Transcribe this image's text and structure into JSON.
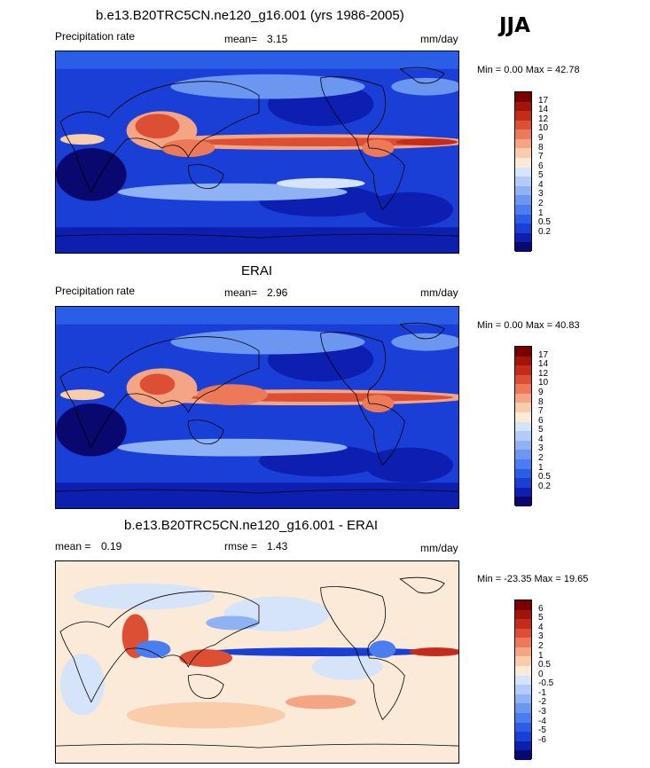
{
  "season": "JJA",
  "colors": {
    "full": [
      "#08086e",
      "#0d1fb0",
      "#1a3fd6",
      "#2a5ee6",
      "#4a7df0",
      "#6b97f0",
      "#8fb2f4",
      "#b3ccf7",
      "#d6e4fa",
      "#fbead8",
      "#f9ccaa",
      "#f4a684",
      "#ec7a58",
      "#dd4f34",
      "#c42b1a",
      "#a11508",
      "#7a0000"
    ],
    "diff": [
      "#08086e",
      "#0d1fb0",
      "#1a3fd6",
      "#2a5ee6",
      "#4a7df0",
      "#6b97f0",
      "#8fb2f4",
      "#b3ccf7",
      "#d6e4fa",
      "#fbead8",
      "#f9ccaa",
      "#f4a684",
      "#ec7a58",
      "#dd4f34",
      "#c42b1a",
      "#a11508",
      "#7a0000"
    ]
  },
  "panels": [
    {
      "title": "b.e13.B20TRC5CN.ne120_g16.001 (yrs 1986-2005)",
      "left_label": "Precipitation rate",
      "mean_label": "mean=",
      "mean_value": "3.15",
      "units": "mm/day",
      "minmax": "Min =   0.00 Max =  42.78",
      "ticks": [
        "17",
        "14",
        "12",
        "10",
        "9",
        "8",
        "7",
        "6",
        "5",
        "4",
        "3",
        "2",
        "1",
        "0.5",
        "0.2"
      ]
    },
    {
      "title": "ERAI",
      "left_label": "Precipitation rate",
      "mean_label": "mean=",
      "mean_value": "2.96",
      "units": "mm/day",
      "minmax": "Min =   0.00 Max =  40.83",
      "ticks": [
        "17",
        "14",
        "12",
        "10",
        "9",
        "8",
        "7",
        "6",
        "5",
        "4",
        "3",
        "2",
        "1",
        "0.5",
        "0.2"
      ]
    },
    {
      "title": "b.e13.B20TRC5CN.ne120_g16.001 - ERAI",
      "left_label": "mean =",
      "left_value": "0.19",
      "mean_label": "rmse =",
      "mean_value": "1.43",
      "units": "mm/day",
      "minmax": "Min = -23.35 Max =  19.65",
      "ticks": [
        "6",
        "5",
        "4",
        "3",
        "2",
        "1",
        "0.5",
        "0",
        "-0.5",
        "-1",
        "-2",
        "-3",
        "-4",
        "-5",
        "-6"
      ]
    }
  ],
  "chart_data": [
    {
      "type": "heatmap",
      "title": "b.e13.B20TRC5CN.ne120_g16.001 (yrs 1986-2005)",
      "variable": "Precipitation rate",
      "units": "mm/day",
      "mean": 3.15,
      "min": 0.0,
      "max": 42.78,
      "levels": [
        0.2,
        0.5,
        1,
        2,
        3,
        4,
        5,
        6,
        7,
        8,
        9,
        10,
        12,
        14,
        17
      ]
    },
    {
      "type": "heatmap",
      "title": "ERAI",
      "variable": "Precipitation rate",
      "units": "mm/day",
      "mean": 2.96,
      "min": 0.0,
      "max": 40.83,
      "levels": [
        0.2,
        0.5,
        1,
        2,
        3,
        4,
        5,
        6,
        7,
        8,
        9,
        10,
        12,
        14,
        17
      ]
    },
    {
      "type": "heatmap",
      "title": "b.e13.B20TRC5CN.ne120_g16.001 - ERAI",
      "units": "mm/day",
      "mean": 0.19,
      "rmse": 1.43,
      "min": -23.35,
      "max": 19.65,
      "levels": [
        -6,
        -5,
        -4,
        -3,
        -2,
        -1,
        -0.5,
        0,
        0.5,
        1,
        2,
        3,
        4,
        5,
        6
      ]
    }
  ]
}
